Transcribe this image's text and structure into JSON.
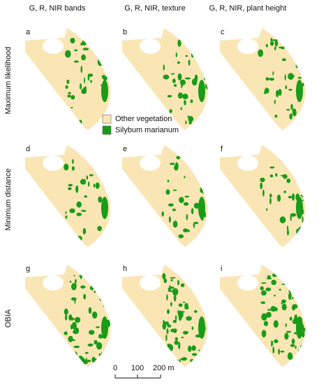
{
  "column_headers": [
    "G, R, NIR bands",
    "G, R, NIR, texture",
    "G, R, NIR, plant height"
  ],
  "row_labels": [
    "Maximum likelihood",
    "Minimum distance",
    "OBIA"
  ],
  "panels": [
    "a",
    "b",
    "c",
    "d",
    "e",
    "f",
    "g",
    "h",
    "i"
  ],
  "legend": [
    "Other vegetation",
    "Silybum marianum"
  ],
  "scale_bar": [
    "0",
    "100",
    "200 m"
  ]
}
